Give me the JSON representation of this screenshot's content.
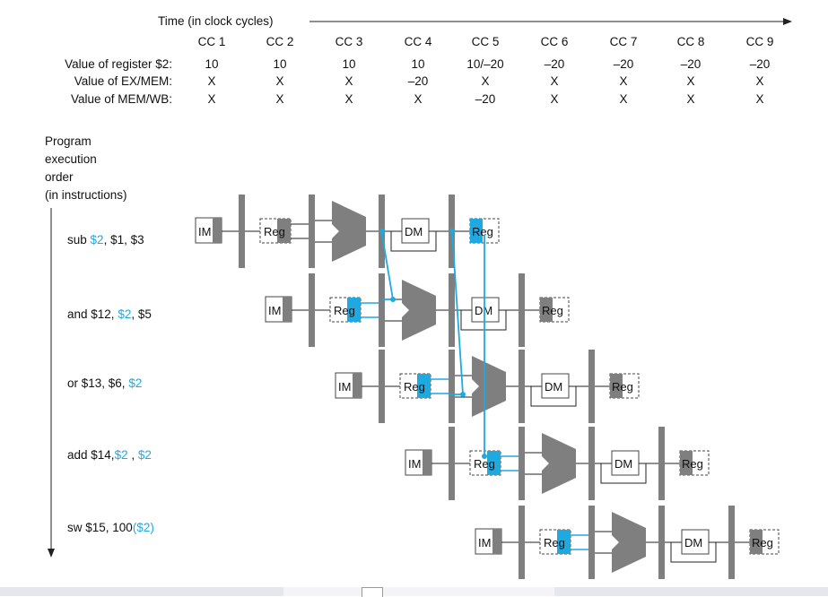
{
  "header": {
    "time_label": "Time (in clock cycles)",
    "cycles": [
      "CC 1",
      "CC 2",
      "CC 3",
      "CC 4",
      "CC 5",
      "CC 6",
      "CC 7",
      "CC 8",
      "CC 9"
    ]
  },
  "table": {
    "rows": [
      {
        "label": "Value of register $2:",
        "values": [
          "10",
          "10",
          "10",
          "10",
          "10/–20",
          "–20",
          "–20",
          "–20",
          "–20"
        ]
      },
      {
        "label": "Value of EX/MEM:",
        "values": [
          "X",
          "X",
          "X",
          "–20",
          "X",
          "X",
          "X",
          "X",
          "X"
        ]
      },
      {
        "label": "Value of MEM/WB:",
        "values": [
          "X",
          "X",
          "X",
          "X",
          "–20",
          "X",
          "X",
          "X",
          "X"
        ]
      }
    ]
  },
  "program_order": {
    "line1": "Program",
    "line2": "execution",
    "line3": "order",
    "line4": "(in instructions)"
  },
  "instructions": [
    {
      "pre": "sub ",
      "reg": "$2",
      "post": ", $1, $3"
    },
    {
      "pre": "and $12,  ",
      "reg": "$2",
      "post": ", $5"
    },
    {
      "pre": "or $13, $6, ",
      "reg": "$2",
      "post": ""
    },
    {
      "pre": "add $14,",
      "reg": "$2",
      "mid": " , ",
      "reg2": "$2",
      "post": ""
    },
    {
      "pre": "sw $15, 100",
      "reg": "($2)",
      "post": ""
    }
  ],
  "stage_labels": {
    "im": "IM",
    "reg": "Reg",
    "dm": "DM"
  },
  "colors": {
    "highlight": "#1fa9e1",
    "pipeline_gray": "#7f7f7f",
    "dark": "#333333"
  }
}
